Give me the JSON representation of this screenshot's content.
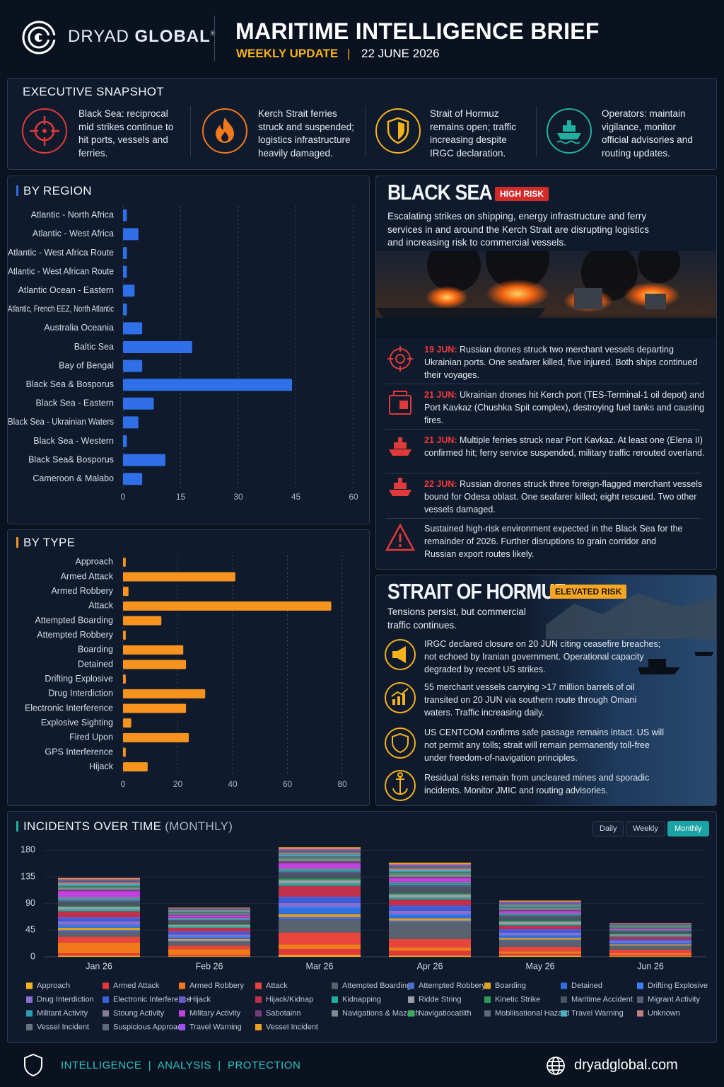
{
  "header": {
    "brand_light": "DRYAD",
    "brand_bold": "GLOBAL",
    "registered": "®",
    "title": "MARITIME INTELLIGENCE BRIEF",
    "subtitle": "WEEKLY UPDATE",
    "date": "22 JUNE 2026"
  },
  "snapshot": {
    "title": "EXECUTIVE SNAPSHOT",
    "items": [
      "Black Sea: reciprocal mid strikes continue to hit ports, vessels and ferries.",
      "Kerch Strait ferries struck and suspended; logistics infrastructure heavily damaged.",
      "Strait of Hormuz remains open; traffic increasing despite IRGC declaration.",
      "Operators: maintain vigilance, monitor official advisories and routing updates."
    ]
  },
  "black_sea": {
    "title": "BLACK SEA",
    "badge": "HIGH RISK",
    "summary": "Escalating strikes on shipping, energy infrastructure and ferry services in and around the Kerch Strait are disrupting logistics and increasing risk to commercial vessels.",
    "events": [
      {
        "date": "19 JUN:",
        "text": "Russian drones struck two merchant vessels departing Ukrainian ports. One seafarer killed, five injured. Both ships continued their voyages."
      },
      {
        "date": "21 JUN:",
        "text": "Ukrainian drones hit Kerch port (TES-Terminal-1 oil depot) and Port Kavkaz (Chushka Spit complex), destroying fuel tanks and causing fires."
      },
      {
        "date": "21 JUN:",
        "text": "Multiple ferries struck near Port Kavkaz. At least one (Elena II) confirmed hit; ferry service suspended, military traffic rerouted overland."
      },
      {
        "date": "22 JUN:",
        "text": "Russian drones struck three foreign-flagged merchant vessels bound for Odesa oblast. One seafarer killed; eight rescued. Two other vessels damaged."
      }
    ],
    "outlook": "Sustained high-risk environment expected in the Black Sea for the remainder of 2026. Further disruptions to grain corridor and Russian export routes likely."
  },
  "hormuz": {
    "title": "STRAIT OF HORMUZ",
    "badge": "ELEVATED RISK",
    "summary": "Tensions persist, but commercial traffic continues.",
    "items": [
      "IRGC declared closure on 20 JUN citing ceasefire breaches; not echoed by Iranian government. Operational capacity degraded by recent US strikes.",
      "55 merchant vessels carrying >17 million barrels of oil transited on 20 JUN via southern route through Omani waters. Traffic increasing daily.",
      "US CENTCOM confirms safe passage remains intact. US will not permit any tolls; strait will remain permanently toll-free under freedom-of-navigation principles.",
      "Residual risks remain from uncleared mines and sporadic incidents. Monitor JMIC and routing advisories."
    ]
  },
  "chart_data": [
    {
      "type": "bar",
      "orientation": "horizontal",
      "title": "BY REGION",
      "color": "#2f6fe8",
      "grid": true,
      "categories": [
        "Atlantic - North Africa",
        "Atlantic - West Africa",
        "Atlantic - West Africa Route",
        "Atlantic - West African Route",
        "Atlantic Ocean - Eastern",
        "Atlantic, French EEZ, North Atlantic",
        "Australia Oceania",
        "Baltic Sea",
        "Bay of Bengal",
        "Black Sea & Bosporus",
        "Black Sea - Eastern",
        "Black Sea - Ukrainian Waters",
        "Black Sea - Western",
        "Black Sea& Bosporus",
        "Cameroon & Malabo"
      ],
      "values": [
        1,
        4,
        1,
        1,
        3,
        1,
        5,
        18,
        5,
        44,
        8,
        4,
        1,
        11,
        5
      ],
      "xlim": [
        0,
        60
      ],
      "xticks": [
        0,
        15,
        30,
        45,
        60
      ]
    },
    {
      "type": "bar",
      "orientation": "horizontal",
      "title": "BY TYPE",
      "color": "#f7931e",
      "grid": true,
      "categories": [
        "Approach",
        "Armed Attack",
        "Armed Robbery",
        "Attack",
        "Attempted Boarding",
        "Attempted Robbery",
        "Boarding",
        "Detained",
        "Drifting Explosive",
        "Drug Interdiction",
        "Electronic Interference",
        "Explosive Sighting",
        "Fired Upon",
        "GPS Interference",
        "Hijack"
      ],
      "values": [
        1,
        41,
        2,
        76,
        14,
        1,
        22,
        23,
        1,
        30,
        23,
        3,
        24,
        1,
        9
      ],
      "xlim": [
        0,
        80
      ],
      "xticks": [
        0,
        20,
        40,
        60,
        80
      ]
    },
    {
      "type": "stacked_bar",
      "title": "INCIDENTS OVER TIME",
      "subtitle": "(MONTHLY)",
      "toggles": [
        "Daily",
        "Weekly",
        "Monthly"
      ],
      "active_toggle": 2,
      "grid": true,
      "categories": [
        "Jan 26",
        "Feb 26",
        "Mar 26",
        "Apr 26",
        "May 26",
        "Jun 26"
      ],
      "ylim": [
        0,
        190
      ],
      "yticks": [
        0,
        45,
        90,
        135,
        180
      ],
      "series": [
        {
          "name": "Approach",
          "color": "#f5b21b",
          "values": [
            2,
            1,
            3,
            2,
            2,
            1
          ]
        },
        {
          "name": "Armed Attack",
          "color": "#e03a3a",
          "values": [
            4,
            2,
            10,
            8,
            3,
            2
          ]
        },
        {
          "name": "Armed Robbery",
          "color": "#f07a1a",
          "values": [
            18,
            10,
            8,
            6,
            4,
            3
          ]
        },
        {
          "name": "Attack",
          "color": "#e8453c",
          "values": [
            10,
            6,
            20,
            14,
            8,
            6
          ]
        },
        {
          "name": "Attempted Boarding",
          "color": "#5a6270",
          "values": [
            8,
            6,
            22,
            28,
            10,
            6
          ]
        },
        {
          "name": "Attempted Robbery",
          "color": "#4a6fd0",
          "values": [
            3,
            2,
            4,
            3,
            2,
            1
          ]
        },
        {
          "name": "Boarding",
          "color": "#e0a020",
          "values": [
            4,
            3,
            5,
            4,
            3,
            2
          ]
        },
        {
          "name": "Detained",
          "color": "#2f6fe0",
          "values": [
            3,
            2,
            10,
            5,
            3,
            2
          ]
        },
        {
          "name": "Drifting Explosive",
          "color": "#3b82f6",
          "values": [
            2,
            2,
            3,
            2,
            2,
            1
          ]
        },
        {
          "name": "Drug Interdiction",
          "color": "#8a6fd0",
          "values": [
            6,
            4,
            6,
            6,
            4,
            3
          ]
        },
        {
          "name": "Electronic Interference",
          "color": "#3a5fd8",
          "values": [
            4,
            3,
            8,
            6,
            4,
            2
          ]
        },
        {
          "name": "Hijack",
          "color": "#6a5acd",
          "values": [
            3,
            2,
            3,
            3,
            2,
            1
          ]
        },
        {
          "name": "Hijack/Kidnap",
          "color": "#c0304a",
          "values": [
            10,
            6,
            18,
            10,
            6,
            4
          ]
        },
        {
          "name": "Kidnapping",
          "color": "#20b0a0",
          "values": [
            3,
            2,
            4,
            3,
            2,
            2
          ]
        },
        {
          "name": "Ridde String",
          "color": "#9aa0a8",
          "values": [
            4,
            3,
            5,
            5,
            4,
            2
          ]
        },
        {
          "name": "Kinetic Strike",
          "color": "#2e9a5a",
          "values": [
            2,
            1,
            3,
            2,
            2,
            1
          ]
        },
        {
          "name": "Maritime Accident",
          "color": "#4a5563",
          "values": [
            6,
            5,
            8,
            10,
            6,
            3
          ]
        },
        {
          "name": "Migrant Activity",
          "color": "#5a5a7a",
          "values": [
            3,
            2,
            4,
            4,
            3,
            2
          ]
        },
        {
          "name": "Militant Activity",
          "color": "#2aa0b0",
          "values": [
            3,
            2,
            3,
            3,
            2,
            1
          ]
        },
        {
          "name": "Stoung Activity",
          "color": "#8a7aa0",
          "values": [
            3,
            2,
            3,
            3,
            2,
            1
          ]
        },
        {
          "name": "Military Activity",
          "color": "#c040e0",
          "values": [
            10,
            4,
            8,
            6,
            3,
            1
          ]
        },
        {
          "name": "Sabotainn",
          "color": "#7a3a7a",
          "values": [
            2,
            1,
            3,
            2,
            2,
            1
          ]
        },
        {
          "name": "Navigations & Mazach",
          "color": "#808890",
          "values": [
            3,
            2,
            4,
            4,
            3,
            1
          ]
        },
        {
          "name": "Navigatiocatiith",
          "color": "#3aaa60",
          "values": [
            2,
            1,
            2,
            2,
            1,
            1
          ]
        },
        {
          "name": "Mobliisational Hazard",
          "color": "#5a6a80",
          "values": [
            2,
            2,
            3,
            3,
            2,
            1
          ]
        },
        {
          "name": "Travel Warning",
          "color": "#4ab0c0",
          "values": [
            3,
            2,
            3,
            3,
            2,
            1
          ]
        },
        {
          "name": "Unknown",
          "color": "#c08080",
          "values": [
            2,
            1,
            2,
            2,
            1,
            1
          ]
        },
        {
          "name": "Vessel Incident",
          "color": "#6a7080",
          "values": [
            2,
            1,
            2,
            2,
            1,
            1
          ]
        },
        {
          "name": "Suspicious Approach",
          "color": "#5a6a7a",
          "values": [
            2,
            1,
            3,
            3,
            2,
            1
          ]
        },
        {
          "name": "Travel Warning",
          "color": "#a050f0",
          "values": [
            2,
            1,
            2,
            2,
            2,
            1
          ]
        },
        {
          "name": "Vessel Incident",
          "color": "#f0a020",
          "values": [
            2,
            1,
            3,
            3,
            2,
            1
          ]
        }
      ]
    }
  ],
  "footer": {
    "tagline": [
      "INTELLIGENCE",
      "ANALYSIS",
      "PROTECTION"
    ],
    "website": "dryadglobal.com"
  }
}
